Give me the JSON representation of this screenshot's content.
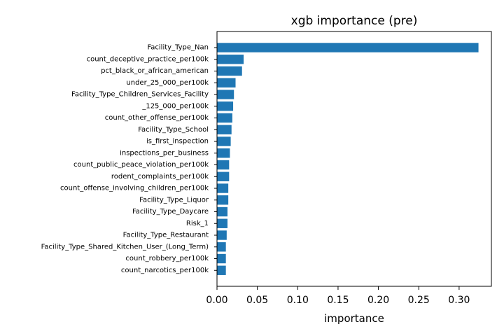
{
  "chart_data": {
    "type": "bar",
    "orientation": "horizontal",
    "title": "xgb importance (pre)",
    "xlabel": "importance",
    "ylabel": "",
    "xlim": [
      0,
      0.34
    ],
    "xticks": [
      "0.00",
      "0.05",
      "0.10",
      "0.15",
      "0.20",
      "0.25",
      "0.30"
    ],
    "xtick_values": [
      0,
      0.05,
      0.1,
      0.15,
      0.2,
      0.25,
      0.3
    ],
    "grid": false,
    "legend": "none",
    "bar_color": "#1f77b4",
    "categories": [
      "Facility_Type_Nan",
      "count_deceptive_practice_per100k",
      "pct_black_or_african_american",
      "under_25_000_per100k",
      "Facility_Type_Children_Services_Facility",
      "_125_000_per100k",
      "count_other_offense_per100k",
      "Facility_Type_School",
      "is_first_inspection",
      "inspections_per_business",
      "count_public_peace_violation_per100k",
      "rodent_complaints_per100k",
      "count_offense_involving_children_per100k",
      "Facility_Type_Liquor",
      "Facility_Type_Daycare",
      "Risk_1",
      "Facility_Type_Restaurant",
      "Facility_Type_Shared_Kitchen_User_(Long_Term)",
      "count_robbery_per100k",
      "count_narcotics_per100k"
    ],
    "values": [
      0.324,
      0.033,
      0.031,
      0.023,
      0.021,
      0.02,
      0.019,
      0.018,
      0.017,
      0.016,
      0.015,
      0.015,
      0.014,
      0.014,
      0.013,
      0.013,
      0.012,
      0.011,
      0.011,
      0.011
    ]
  }
}
